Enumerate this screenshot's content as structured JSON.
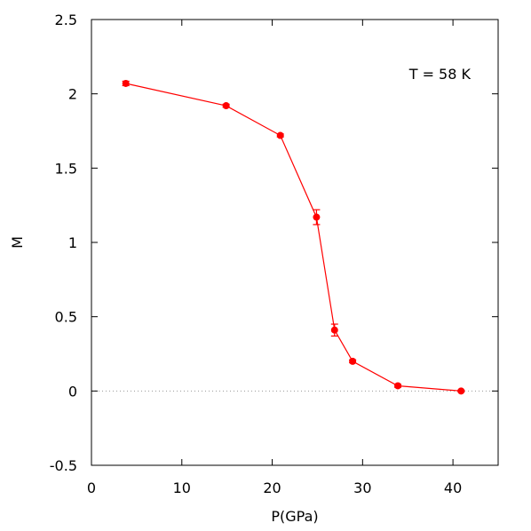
{
  "chart_data": {
    "type": "scatter",
    "xlabel": "P(GPa)",
    "ylabel": "M",
    "xlim": [
      0,
      45
    ],
    "ylim": [
      -0.5,
      2.5
    ],
    "x_ticks": [
      "0",
      "10",
      "20",
      "30",
      "40"
    ],
    "y_ticks": [
      "-0.5",
      "0",
      "0.5",
      "1",
      "1.5",
      "2",
      "2.5"
    ],
    "annotation": "T = 58 K",
    "zero_line": true,
    "grid": false,
    "series": [
      {
        "color": "#ff0000",
        "connected": true,
        "points": [
          {
            "x": 3.8,
            "y": 2.07,
            "err": 0.015
          },
          {
            "x": 14.9,
            "y": 1.92,
            "err": 0.01
          },
          {
            "x": 20.9,
            "y": 1.72,
            "err": 0.01
          },
          {
            "x": 24.9,
            "y": 1.17,
            "err": 0.05
          },
          {
            "x": 26.9,
            "y": 0.41,
            "err": 0.04
          },
          {
            "x": 28.9,
            "y": 0.2,
            "err": 0.01
          },
          {
            "x": 33.9,
            "y": 0.035,
            "err": 0.01
          },
          {
            "x": 40.9,
            "y": 0.0,
            "err": 0.005
          }
        ]
      }
    ]
  }
}
